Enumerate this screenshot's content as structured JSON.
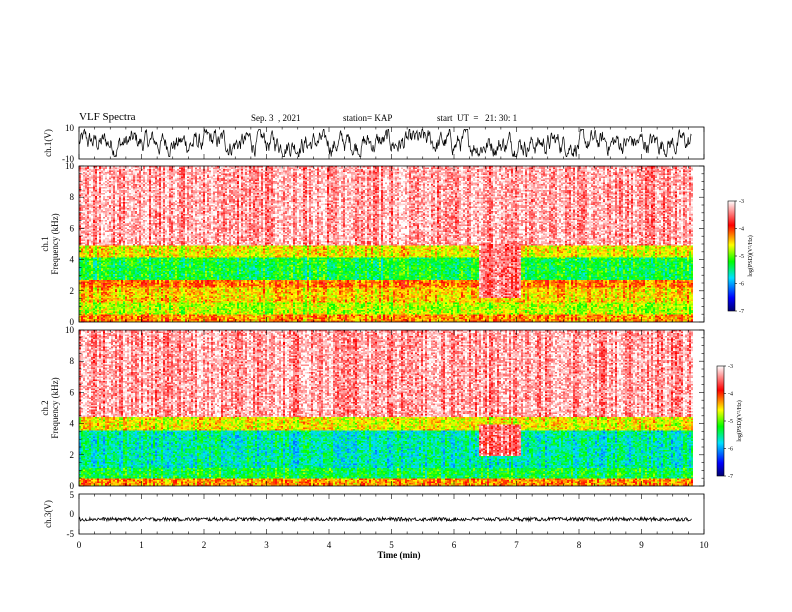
{
  "header": {
    "title": "VLF Spectra",
    "date": "Sep. 3  , 2021",
    "station": "station= KAP",
    "start": "start  UT  =   21: 30: 1"
  },
  "chart_data": [
    {
      "type": "line",
      "panel": "waveform-ch1",
      "ylabel": "ch.1(V)",
      "ylim": [
        -10,
        10
      ],
      "yticks": [
        "10",
        "-10"
      ],
      "xlim": [
        0,
        10
      ],
      "color": "#000000",
      "note_series": "noisy waveform spanning roughly -8 to 8 V across 0-9.8 min"
    },
    {
      "type": "heatmap",
      "panel": "spectrogram-ch1",
      "ylabel_line1": "ch.1",
      "ylabel_line2": "Frequency  (kHz)",
      "ylim": [
        0,
        10
      ],
      "yticks": [
        "0",
        "2",
        "4",
        "6",
        "8",
        "10"
      ],
      "xlim": [
        0,
        10
      ],
      "data_xrange": [
        0,
        9.8
      ],
      "bands": [
        {
          "from": 0,
          "to": 0.5,
          "level": -4.3
        },
        {
          "from": 0.5,
          "to": 1.3,
          "level": -4.8
        },
        {
          "from": 1.3,
          "to": 2.3,
          "level": -4.5
        },
        {
          "from": 2.3,
          "to": 2.7,
          "level": -4.2
        },
        {
          "from": 2.7,
          "to": 4.2,
          "level": -5.3
        },
        {
          "from": 4.2,
          "to": 5.0,
          "level": -4.6
        },
        {
          "from": 5.0,
          "to": 10,
          "level": -3.3
        }
      ],
      "anomaly": {
        "x": [
          6.4,
          7.05
        ],
        "freq": [
          1.6,
          5.0
        ],
        "level": -3.5
      },
      "colorbar": {
        "label": "log(PSD)(V²/Hz)",
        "ticks": [
          "-3",
          "-4",
          "-5",
          "-6",
          "-7"
        ],
        "range": [
          -7,
          -3
        ]
      }
    },
    {
      "type": "heatmap",
      "panel": "spectrogram-ch2",
      "ylabel_line1": "ch.2",
      "ylabel_line2": "Frequency  (kHz)",
      "ylim": [
        0,
        10
      ],
      "yticks": [
        "0",
        "2",
        "4",
        "6",
        "8",
        "10"
      ],
      "xlim": [
        0,
        10
      ],
      "data_xrange": [
        0,
        9.8
      ],
      "bands": [
        {
          "from": 0,
          "to": 0.5,
          "level": -4.3
        },
        {
          "from": 0.5,
          "to": 1.2,
          "level": -5.3
        },
        {
          "from": 1.2,
          "to": 2.2,
          "level": -5.6
        },
        {
          "from": 2.2,
          "to": 3.6,
          "level": -5.6
        },
        {
          "from": 3.6,
          "to": 4.5,
          "level": -4.6
        },
        {
          "from": 4.5,
          "to": 10,
          "level": -3.3
        }
      ],
      "anomaly": {
        "x": [
          6.4,
          7.05
        ],
        "freq": [
          2.0,
          4.0
        ],
        "level": -3.5
      },
      "colorbar": {
        "label": "log(PSD)(V²/Hz)",
        "ticks": [
          "-3",
          "-4",
          "-5",
          "-6",
          "-7"
        ],
        "range": [
          -7,
          -3
        ]
      }
    },
    {
      "type": "line",
      "panel": "waveform-ch3",
      "ylabel": "ch.3(V)",
      "ylim": [
        -5,
        5
      ],
      "yticks": [
        "5",
        "0",
        "-5"
      ],
      "xlim": [
        0,
        10
      ],
      "xlabel": "Time  (min)",
      "xticks": [
        "0",
        "1",
        "2",
        "3",
        "4",
        "5",
        "6",
        "7",
        "8",
        "9",
        "10"
      ],
      "series_level": -1.3,
      "color": "#000000"
    }
  ],
  "colors": {
    "colormap": [
      "#000070",
      "#0000ff",
      "#00e0ff",
      "#00ff00",
      "#ffff00",
      "#ff0000",
      "#ffffff"
    ],
    "axes": "#000000"
  }
}
